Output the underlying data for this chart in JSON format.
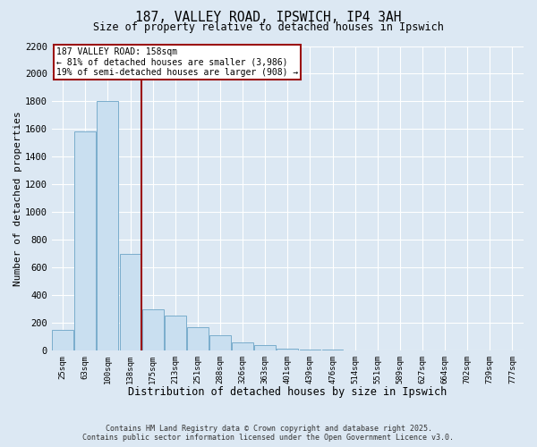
{
  "title_line1": "187, VALLEY ROAD, IPSWICH, IP4 3AH",
  "title_line2": "Size of property relative to detached houses in Ipswich",
  "xlabel": "Distribution of detached houses by size in Ipswich",
  "ylabel": "Number of detached properties",
  "categories": [
    "25sqm",
    "63sqm",
    "100sqm",
    "138sqm",
    "175sqm",
    "213sqm",
    "251sqm",
    "288sqm",
    "326sqm",
    "363sqm",
    "401sqm",
    "439sqm",
    "476sqm",
    "514sqm",
    "551sqm",
    "589sqm",
    "627sqm",
    "664sqm",
    "702sqm",
    "739sqm",
    "777sqm"
  ],
  "values": [
    150,
    1580,
    1800,
    700,
    300,
    250,
    170,
    110,
    60,
    40,
    15,
    5,
    5,
    0,
    0,
    0,
    0,
    0,
    0,
    0,
    0
  ],
  "bar_color": "#c9dff0",
  "bar_edge_color": "#7aadcc",
  "vline_pos": 3.5,
  "vline_color": "#9b1111",
  "annotation_text": "187 VALLEY ROAD: 158sqm\n← 81% of detached houses are smaller (3,986)\n19% of semi-detached houses are larger (908) →",
  "annotation_box_edgecolor": "#9b1111",
  "annotation_bg_color": "#ffffff",
  "ylim_max": 2200,
  "yticks": [
    0,
    200,
    400,
    600,
    800,
    1000,
    1200,
    1400,
    1600,
    1800,
    2000,
    2200
  ],
  "background_color": "#dce8f3",
  "grid_color": "#ffffff",
  "footer_line1": "Contains HM Land Registry data © Crown copyright and database right 2025.",
  "footer_line2": "Contains public sector information licensed under the Open Government Licence v3.0."
}
